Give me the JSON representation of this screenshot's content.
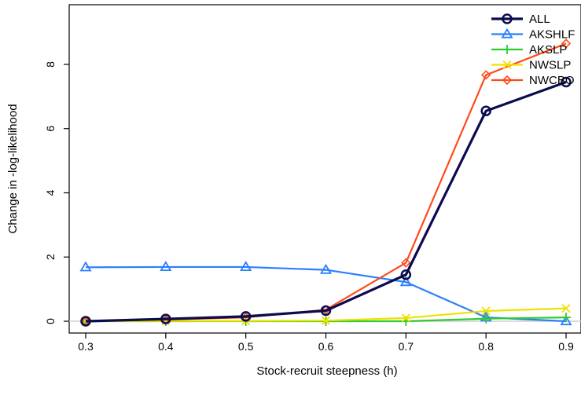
{
  "chart_data": {
    "type": "line",
    "title": "",
    "xlabel": "Stock-recruit steepness (h)",
    "ylabel": "Change in -log-likelihood",
    "x": [
      0.3,
      0.4,
      0.5,
      0.6,
      0.7,
      0.8,
      0.9
    ],
    "xticks": [
      "0.3",
      "0.4",
      "0.5",
      "0.6",
      "0.7",
      "0.8",
      "0.9"
    ],
    "yticks": [
      "0",
      "2",
      "4",
      "6",
      "8"
    ],
    "xlim": [
      0.28,
      0.92
    ],
    "ylim": [
      -0.3,
      9.9
    ],
    "grid": false,
    "reference_line_y": 0,
    "legend_position": "top-right",
    "series": [
      {
        "name": "ALL",
        "color": "#0b0b4f",
        "marker": "circle-open",
        "values": [
          0.0,
          0.07,
          0.15,
          0.33,
          1.45,
          6.55,
          7.45
        ]
      },
      {
        "name": "AKSHLF",
        "color": "#2a7fff",
        "marker": "triangle-open",
        "values": [
          1.68,
          1.69,
          1.69,
          1.6,
          1.22,
          0.12,
          0.0
        ]
      },
      {
        "name": "AKSLP",
        "color": "#2ecc2e",
        "marker": "plus",
        "values": [
          0.0,
          0.0,
          0.0,
          0.0,
          0.0,
          0.08,
          0.12
        ]
      },
      {
        "name": "NWSLP",
        "color": "#f0e000",
        "marker": "x",
        "values": [
          0.0,
          0.01,
          0.01,
          0.02,
          0.1,
          0.32,
          0.4
        ]
      },
      {
        "name": "NWCBO",
        "color": "#ff4a1a",
        "marker": "diamond-open",
        "values": [
          0.0,
          0.05,
          0.12,
          0.36,
          1.82,
          7.67,
          8.65
        ]
      }
    ]
  }
}
